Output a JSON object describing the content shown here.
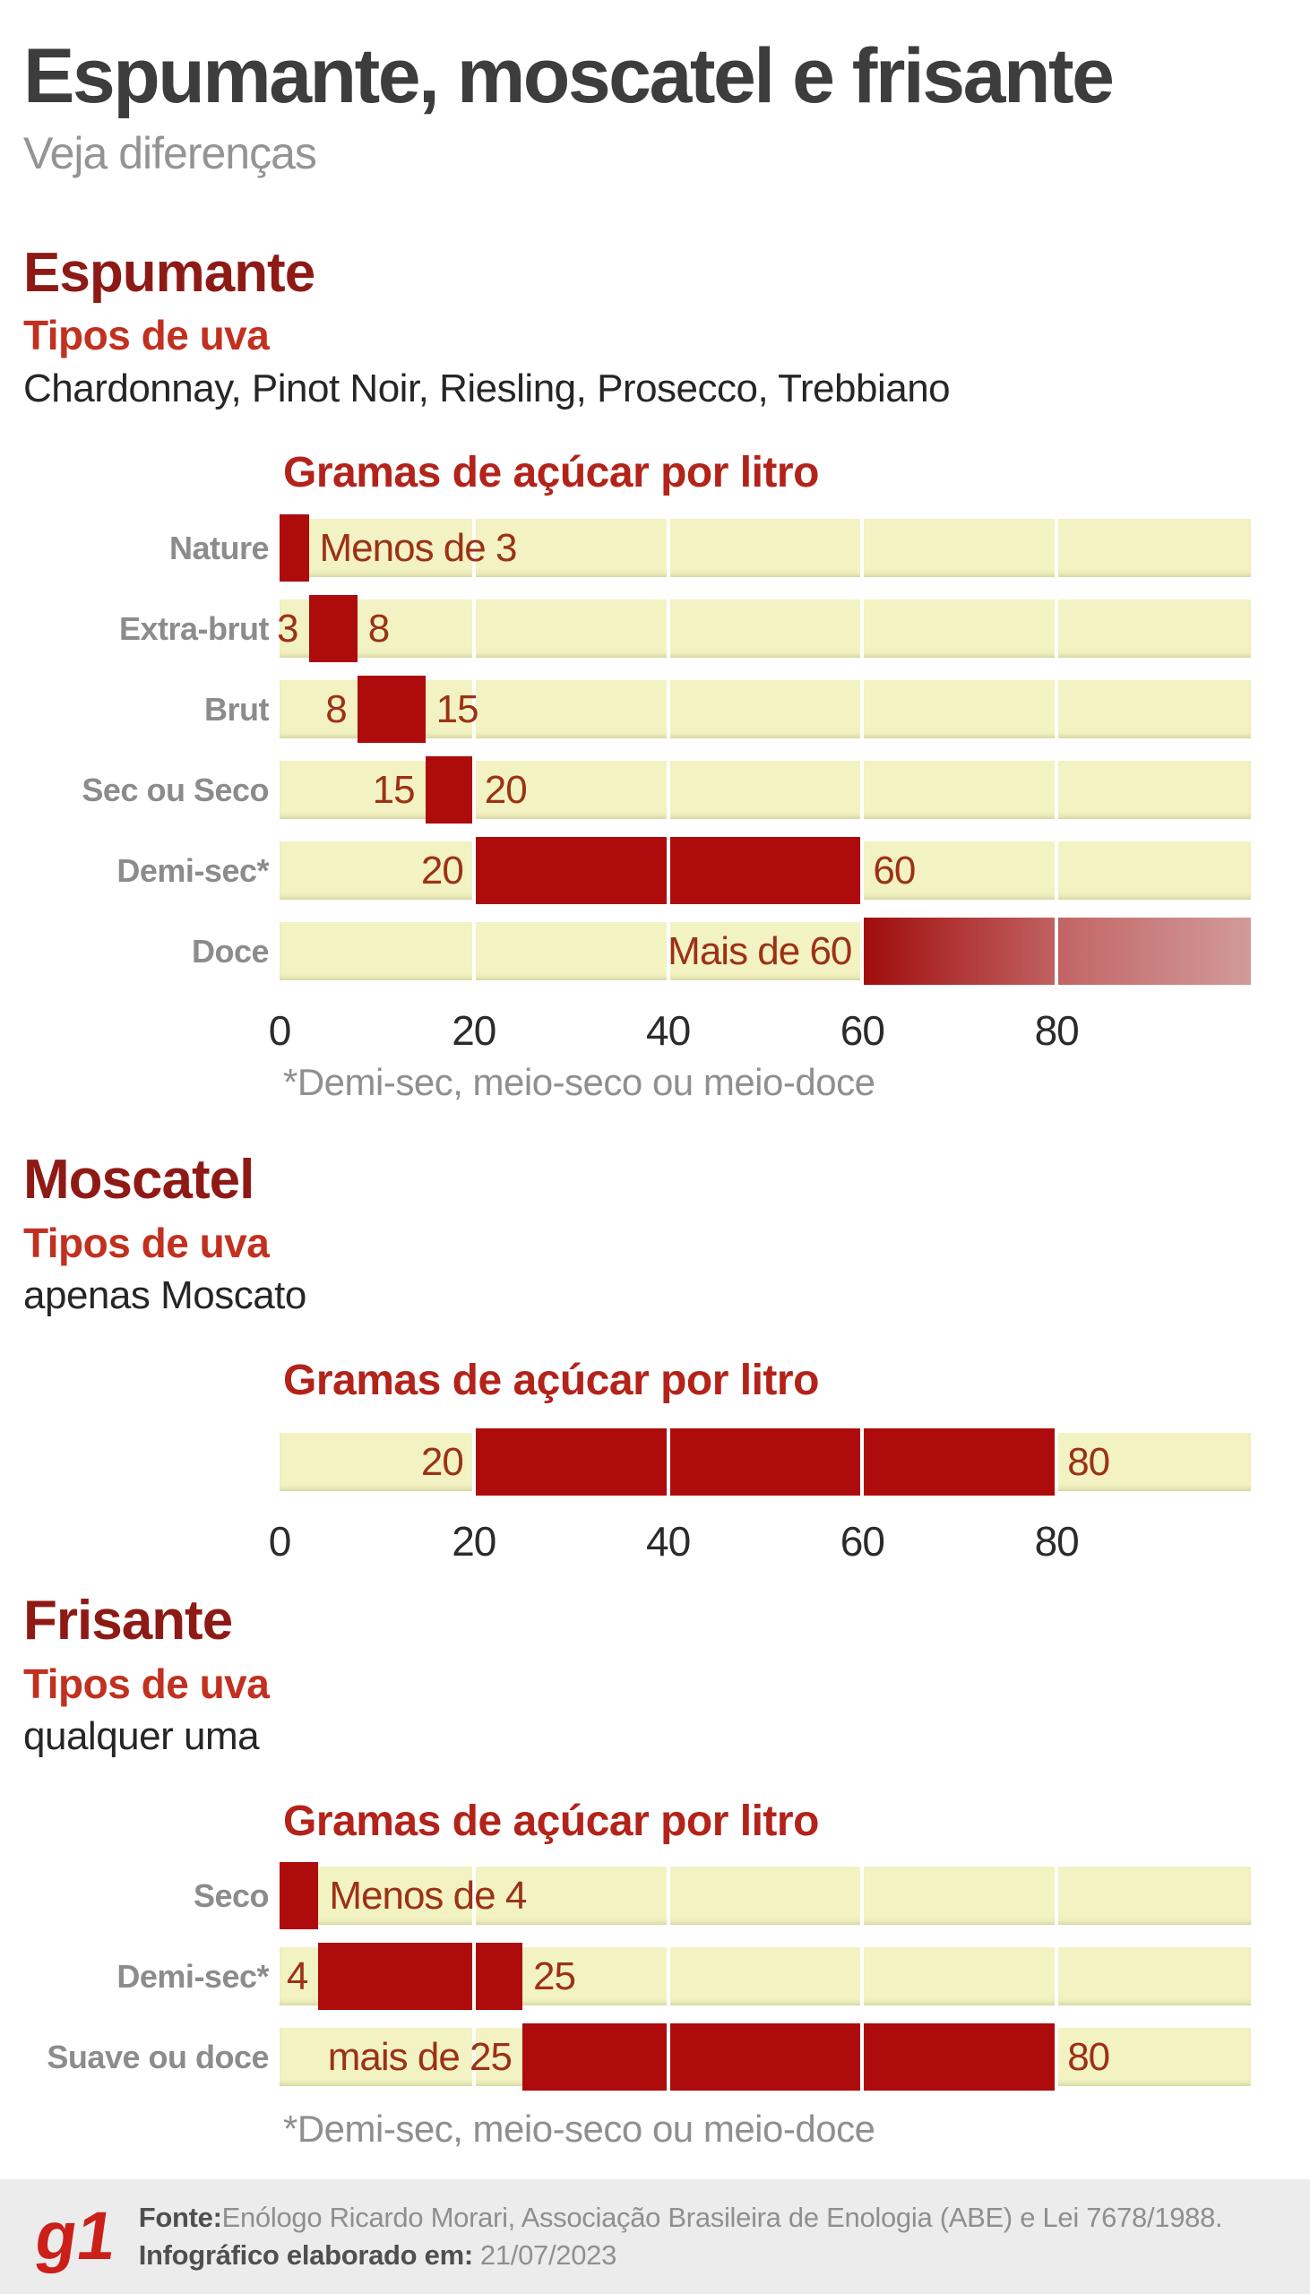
{
  "page": {
    "title": "Espumante, moscatel e frisante",
    "subtitle": "Veja diferenças"
  },
  "colors": {
    "bar_red": "#ad0b0c",
    "bar_gradient_start": "#a00c0c",
    "bar_gradient_mid": "#c46a6a",
    "bar_gradient_end": "#d29a9a",
    "track_cream": "#f2f2c2",
    "section_heading_red": "#8e1a16",
    "tipos_red": "#c2301f",
    "chart_title_red": "#b3231a",
    "bar_value_brown_red": "#9c3116",
    "row_label_gray": "#8c8c8c",
    "title_dark_gray": "#3d3d3d",
    "subtitle_gray": "#949494",
    "footnote_gray": "#8f8f8f",
    "footer_bg": "#ececec",
    "g1_red": "#cb1f1a"
  },
  "chart_data": [
    {
      "type": "bar",
      "section": "Espumante",
      "tipos_label": "Tipos de uva",
      "grapes": "Chardonnay, Pinot Noir, Riesling, Prosecco, Trebbiano",
      "chart_title": "Gramas de açúcar por litro",
      "xlabel": "",
      "ylabel": "",
      "xlim": [
        0,
        100
      ],
      "axis_ticks": [
        0,
        20,
        40,
        60,
        80
      ],
      "show_axis": true,
      "footnote": "*Demi-sec, meio-seco ou meio-doce",
      "rows": [
        {
          "label": "Nature",
          "start": 0,
          "end": 3,
          "right_text": "Menos de 3"
        },
        {
          "label": "Extra-brut",
          "start": 3,
          "end": 8,
          "left_text": "3",
          "right_text": "8"
        },
        {
          "label": "Brut",
          "start": 8,
          "end": 15,
          "left_text": "8",
          "right_text": "15"
        },
        {
          "label": "Sec ou Seco",
          "start": 15,
          "end": 20,
          "left_text": "15",
          "right_text": "20"
        },
        {
          "label": "Demi-sec*",
          "start": 20,
          "end": 60,
          "left_text": "20",
          "right_text": "60"
        },
        {
          "label": "Doce",
          "start": 60,
          "end": 100,
          "left_text": "Mais de 60",
          "gradient": true
        }
      ]
    },
    {
      "type": "bar",
      "section": "Moscatel",
      "tipos_label": "Tipos de uva",
      "grapes": "apenas Moscato",
      "chart_title": "Gramas de açúcar por litro",
      "xlabel": "",
      "ylabel": "",
      "xlim": [
        0,
        100
      ],
      "axis_ticks": [
        0,
        20,
        40,
        60,
        80
      ],
      "show_axis": true,
      "rows": [
        {
          "label": "",
          "start": 20,
          "end": 80,
          "left_text": "20",
          "right_text": "80"
        }
      ]
    },
    {
      "type": "bar",
      "section": "Frisante",
      "tipos_label": "Tipos de uva",
      "grapes": "qualquer uma",
      "chart_title": "Gramas de açúcar por litro",
      "xlabel": "",
      "ylabel": "",
      "xlim": [
        0,
        100
      ],
      "axis_ticks": [],
      "show_axis": false,
      "footnote": "*Demi-sec, meio-seco ou meio-doce",
      "rows": [
        {
          "label": "Seco",
          "start": 0,
          "end": 4,
          "right_text": "Menos de 4"
        },
        {
          "label": "Demi-sec*",
          "start": 4,
          "end": 25,
          "left_text": "4",
          "right_text": "25"
        },
        {
          "label": "Suave ou doce",
          "start": 25,
          "end": 80,
          "left_text": "mais de 25",
          "right_text": "80"
        }
      ]
    }
  ],
  "footer": {
    "logo": "g1",
    "fonte_label": "Fonte:",
    "fonte_text": "Enólogo Ricardo Morari, Associação Brasileira de Enologia (ABE) e Lei 7678/1988.",
    "elaborado_label": "Infográfico elaborado em:",
    "elaborado_value": "21/07/2023"
  }
}
